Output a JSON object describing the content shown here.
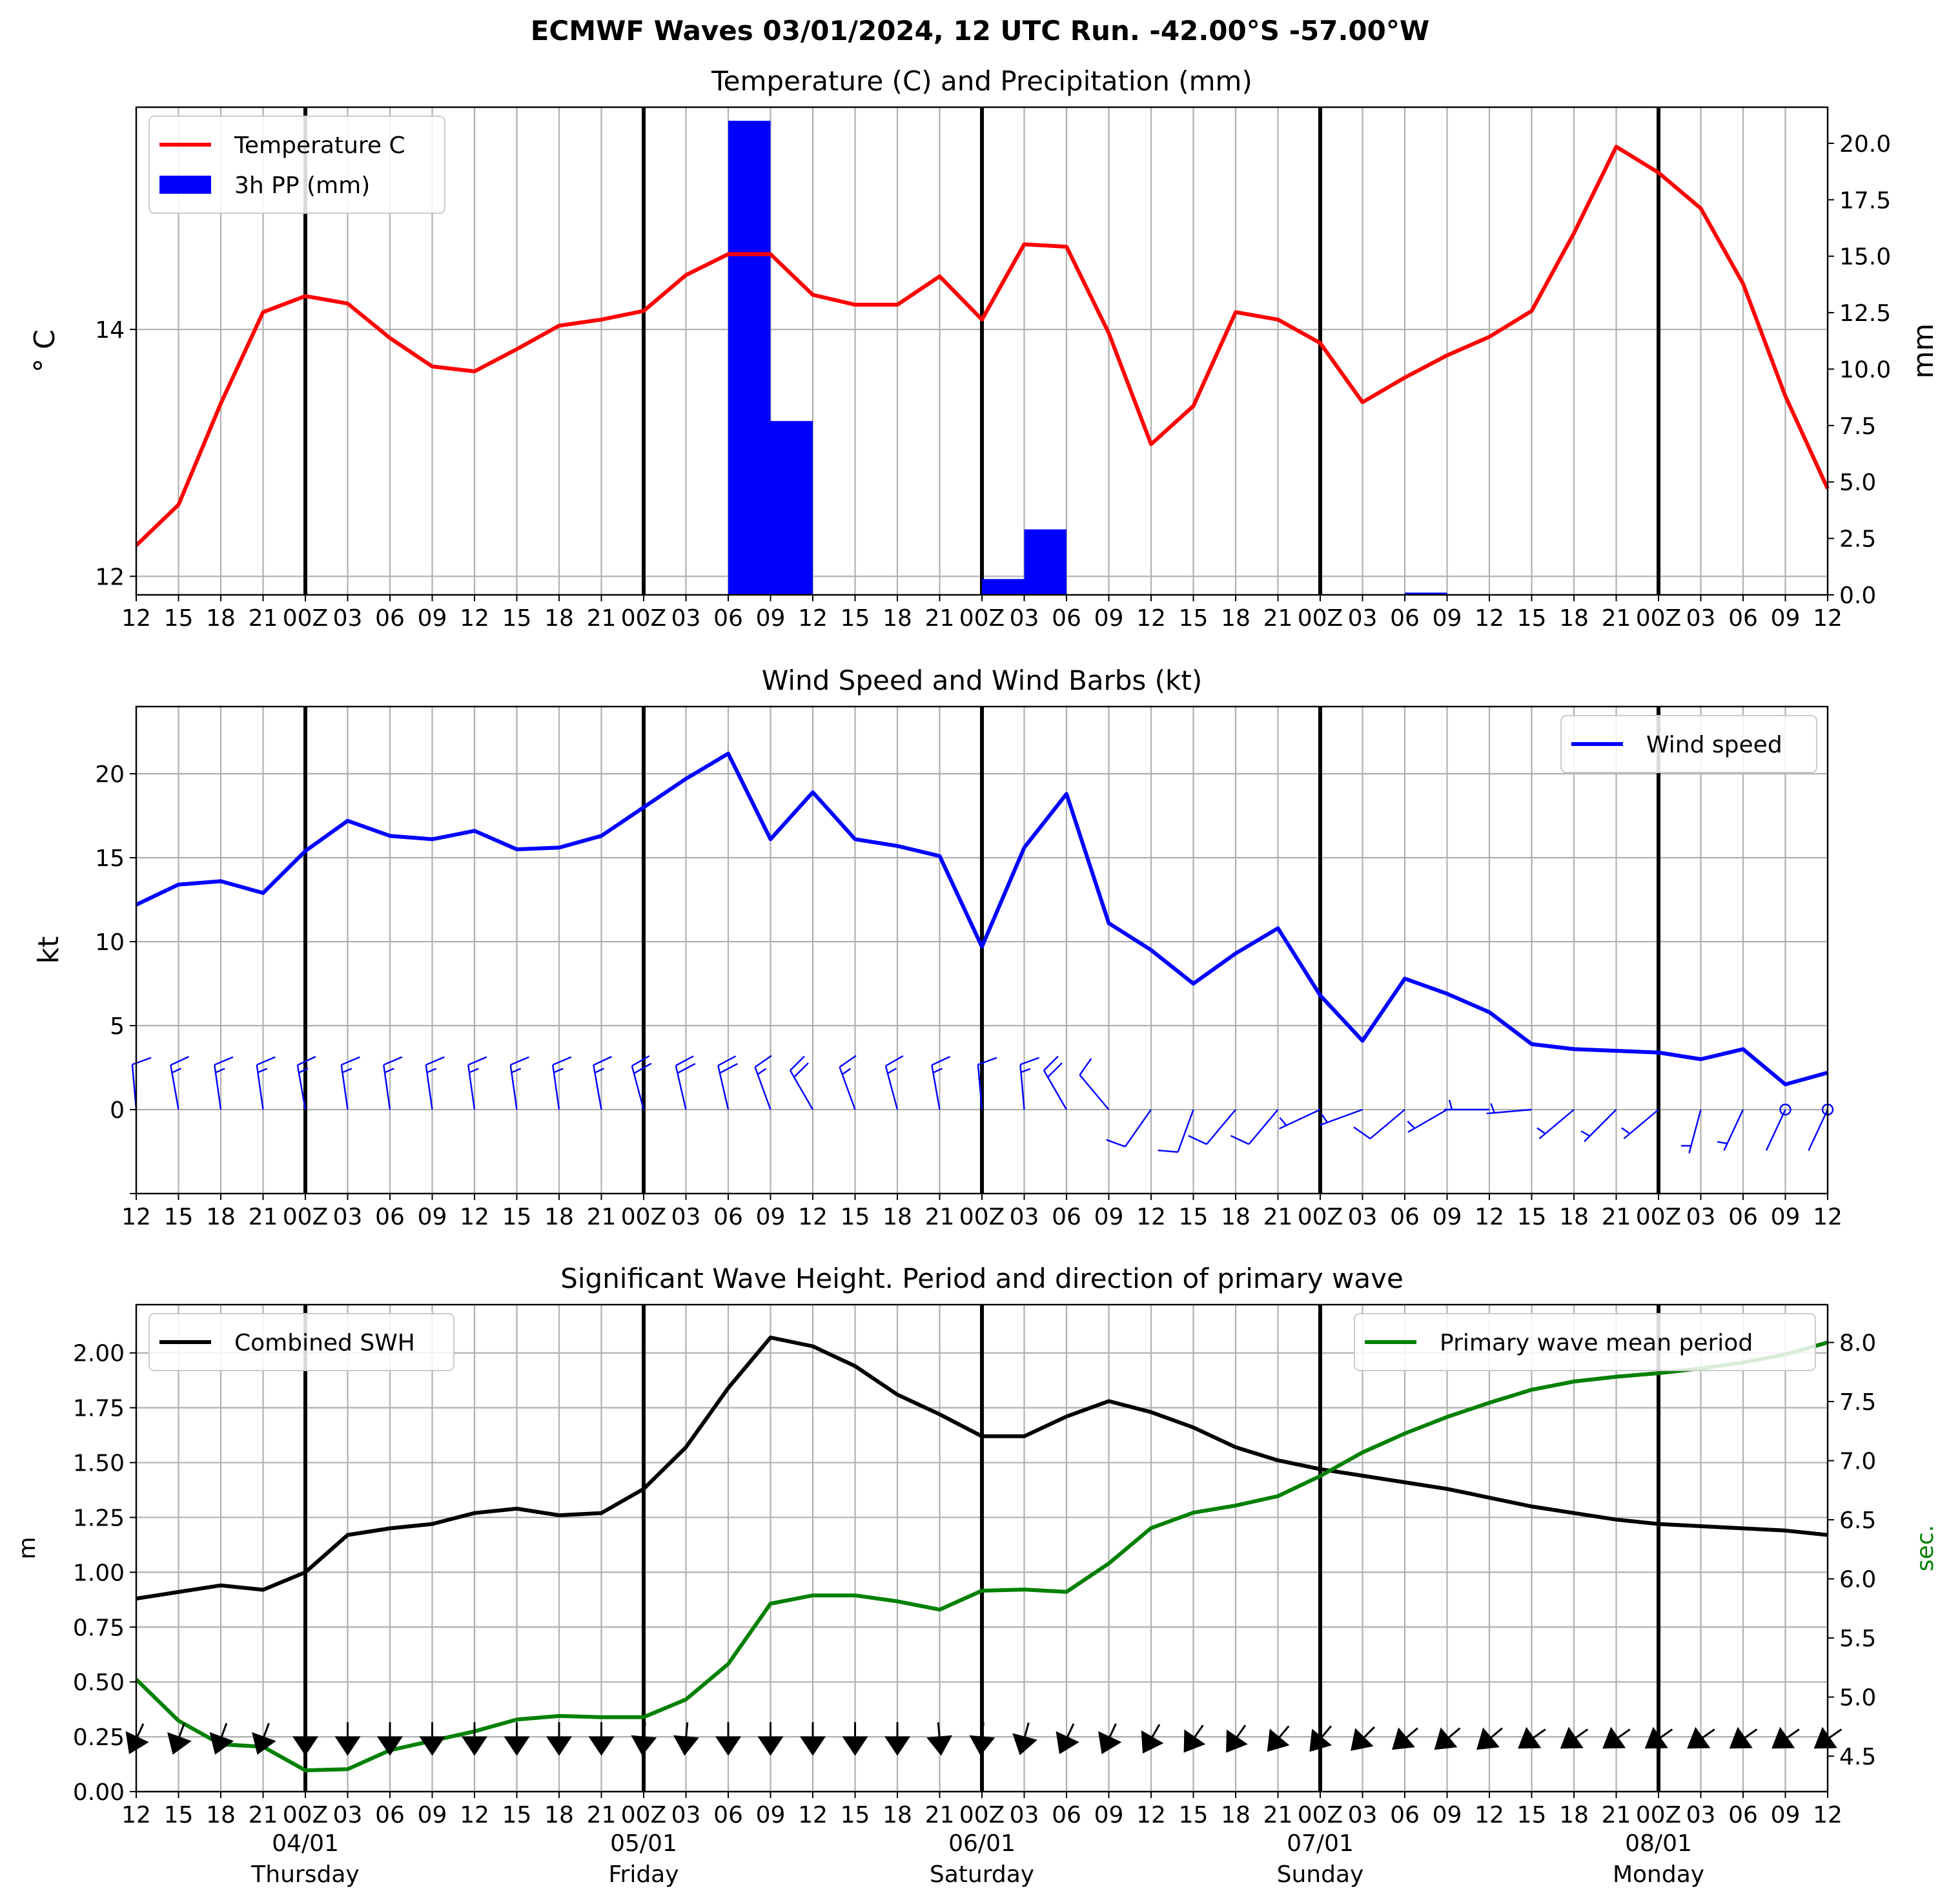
{
  "figure": {
    "suptitle": "ECMWF Waves 03/01/2024, 12 UTC Run. -42.00°S -57.00°W"
  },
  "x_axis": {
    "ticks": [
      "12",
      "15",
      "18",
      "21",
      "00Z",
      "03",
      "06",
      "09",
      "12",
      "15",
      "18",
      "21",
      "00Z",
      "03",
      "06",
      "09",
      "12",
      "15",
      "18",
      "21",
      "00Z",
      "03",
      "06",
      "09",
      "12",
      "15",
      "18",
      "21",
      "00Z",
      "03",
      "06",
      "09",
      "12",
      "15",
      "18",
      "21",
      "00Z",
      "03",
      "06",
      "09",
      "12"
    ],
    "days": [
      {
        "date": "04/01",
        "weekday": "Thursday",
        "x": 4
      },
      {
        "date": "05/01",
        "weekday": "Friday",
        "x": 12
      },
      {
        "date": "06/01",
        "weekday": "Saturday",
        "x": 20
      },
      {
        "date": "07/01",
        "weekday": "Sunday",
        "x": 28
      },
      {
        "date": "08/01",
        "weekday": "Monday",
        "x": 36
      }
    ]
  },
  "chart_data": [
    {
      "type": "line",
      "title": "Temperature (C) and Precipitation (mm)",
      "ylabel": "° C",
      "ylabel_right": "mm",
      "ylim": [
        11.85,
        15.8
      ],
      "ylim_right": [
        0,
        21.6
      ],
      "yticks": [
        12,
        14
      ],
      "yticks_right": [
        "0.0",
        "2.5",
        "5.0",
        "7.5",
        "10.0",
        "12.5",
        "15.0",
        "17.5",
        "20.0"
      ],
      "legend": {
        "position": "upper left",
        "entries": [
          "Temperature C",
          "3h PP (mm)"
        ]
      },
      "colors": {
        "temperature": "#ff0000",
        "precip": "#0000ff"
      },
      "series": [
        {
          "name": "Temperature C",
          "values": [
            12.25,
            12.58,
            13.4,
            14.14,
            14.27,
            14.21,
            13.93,
            13.7,
            13.66,
            13.84,
            14.03,
            14.08,
            14.15,
            14.44,
            14.61,
            14.61,
            14.28,
            14.2,
            14.2,
            14.43,
            14.08,
            14.69,
            14.67,
            13.97,
            13.07,
            13.38,
            14.14,
            14.08,
            13.89,
            13.41,
            13.61,
            13.79,
            13.94,
            14.15,
            14.78,
            15.48,
            15.27,
            14.98,
            14.37,
            13.46,
            12.71
          ]
        },
        {
          "name": "3h PP (mm)",
          "type": "bar",
          "bars": [
            {
              "from": 14,
              "to": 15,
              "value": 21.0
            },
            {
              "from": 15,
              "to": 16,
              "value": 7.7
            },
            {
              "from": 20,
              "to": 21,
              "value": 0.7
            },
            {
              "from": 21,
              "to": 22,
              "value": 2.9
            },
            {
              "from": 30,
              "to": 31,
              "value": 0.1
            }
          ]
        }
      ]
    },
    {
      "type": "line",
      "title": "Wind Speed and Wind Barbs (kt)",
      "ylabel": "kt",
      "ylim": [
        -5,
        24
      ],
      "yticks": [
        0,
        5,
        10,
        15,
        20
      ],
      "legend": {
        "position": "upper right",
        "entries": [
          "Wind speed"
        ]
      },
      "colors": {
        "wind": "#0000ff"
      },
      "series": [
        {
          "name": "Wind speed",
          "values": [
            12.2,
            13.4,
            13.6,
            12.9,
            15.4,
            17.2,
            16.3,
            16.1,
            16.6,
            15.5,
            15.6,
            16.3,
            18.0,
            19.7,
            21.2,
            16.1,
            18.9,
            16.1,
            15.7,
            15.1,
            9.7,
            15.6,
            18.8,
            11.1,
            9.5,
            7.5,
            9.3,
            10.8,
            6.8,
            4.1,
            7.8,
            6.9,
            5.8,
            3.9,
            3.6,
            3.5,
            3.4,
            3.0,
            3.6,
            1.5,
            2.2
          ]
        }
      ],
      "barbs": {
        "note": "wind barbs drawn along y = 0",
        "direction_deg": [
          355,
          350,
          352,
          352,
          350,
          352,
          352,
          352,
          352,
          352,
          352,
          350,
          345,
          347,
          347,
          340,
          330,
          340,
          345,
          350,
          355,
          355,
          330,
          320,
          215,
          200,
          220,
          220,
          245,
          250,
          230,
          240,
          270,
          265,
          230,
          225,
          230,
          195,
          205,
          205,
          205
        ]
      }
    },
    {
      "type": "line",
      "title": "Significant Wave Height. Period and direction of primary wave",
      "ylabel": "m",
      "ylabel_right": "sec.",
      "ylim": [
        0,
        2.22
      ],
      "ylim_right": [
        4.2,
        8.32
      ],
      "yticks": [
        "0.00",
        "0.25",
        "0.50",
        "0.75",
        "1.00",
        "1.25",
        "1.50",
        "1.75",
        "2.00"
      ],
      "yticks_right": [
        "4.5",
        "5.0",
        "5.5",
        "6.0",
        "6.5",
        "7.0",
        "7.5",
        "8.0"
      ],
      "legend": {
        "position": "upper left / upper right",
        "entries": [
          "Combined SWH",
          "Primary wave mean period"
        ]
      },
      "colors": {
        "swh": "#000000",
        "period": "#008000"
      },
      "series": [
        {
          "name": "Combined SWH",
          "values": [
            0.88,
            0.91,
            0.94,
            0.92,
            1.0,
            1.17,
            1.2,
            1.22,
            1.27,
            1.29,
            1.26,
            1.27,
            1.38,
            1.57,
            1.84,
            2.07,
            2.03,
            1.94,
            1.81,
            1.72,
            1.62,
            1.62,
            1.71,
            1.78,
            1.73,
            1.66,
            1.57,
            1.51,
            1.47,
            1.44,
            1.41,
            1.38,
            1.34,
            1.3,
            1.27,
            1.24,
            1.22,
            1.21,
            1.2,
            1.19,
            1.17
          ]
        },
        {
          "name": "Primary wave mean period",
          "values": [
            5.15,
            4.8,
            4.6,
            4.58,
            4.38,
            4.39,
            4.55,
            4.63,
            4.71,
            4.81,
            4.84,
            4.83,
            4.83,
            4.98,
            5.28,
            5.79,
            5.86,
            5.86,
            5.81,
            5.74,
            5.9,
            5.91,
            5.89,
            6.13,
            6.43,
            6.56,
            6.62,
            6.7,
            6.87,
            7.07,
            7.23,
            7.37,
            7.49,
            7.6,
            7.67,
            7.71,
            7.74,
            7.78,
            7.83,
            7.9,
            8.0
          ]
        }
      ],
      "arrows": {
        "note": "primary wave direction arrows drawn along y = 0.24 m",
        "direction_deg": [
          205,
          200,
          200,
          200,
          180,
          180,
          180,
          180,
          180,
          180,
          180,
          180,
          185,
          185,
          180,
          180,
          180,
          180,
          180,
          175,
          185,
          195,
          205,
          205,
          210,
          215,
          215,
          220,
          220,
          225,
          230,
          230,
          230,
          235,
          235,
          235,
          235,
          235,
          235,
          235,
          235
        ]
      }
    }
  ]
}
